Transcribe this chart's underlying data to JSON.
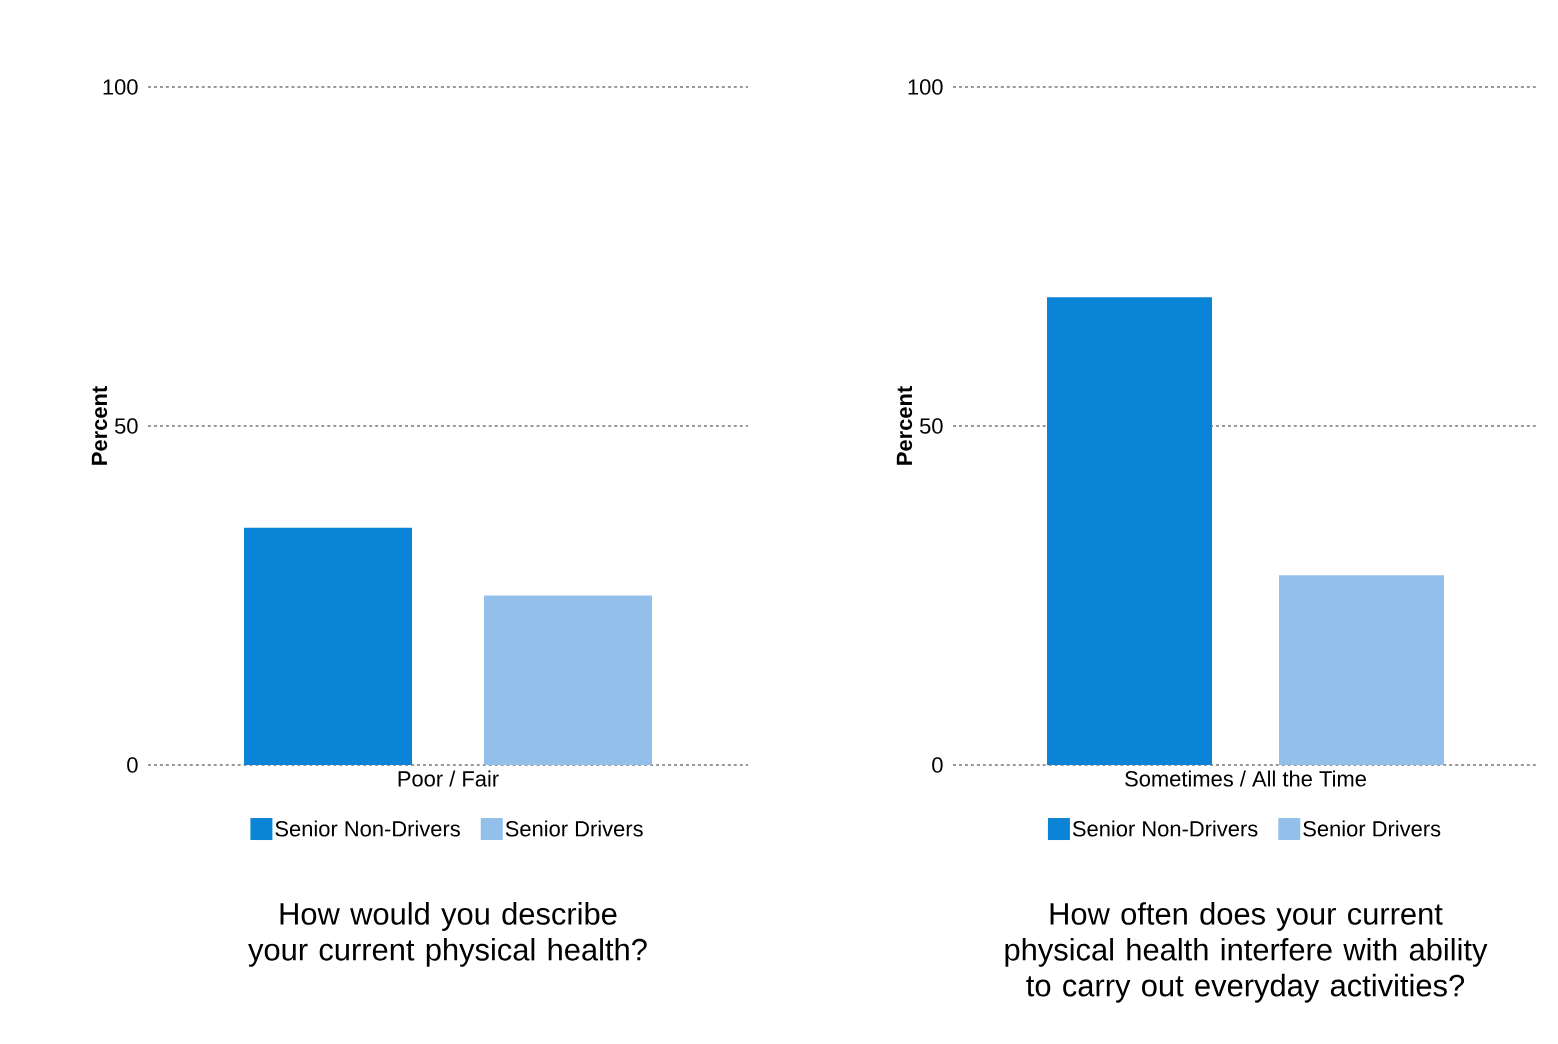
{
  "chart_data": [
    {
      "type": "bar",
      "title": "How would you describe your current physical health?",
      "ylabel": "Percent",
      "categories": [
        "Poor / Fair"
      ],
      "series": [
        {
          "name": "Senior Non-Drivers",
          "color": "#0a84d6",
          "values": [
            35
          ]
        },
        {
          "name": "Senior Drivers",
          "color": "#92c0ea",
          "values": [
            25
          ]
        }
      ],
      "ylim": [
        0,
        100
      ],
      "yticks": [
        0,
        50,
        100
      ],
      "grid": "y",
      "legend": "bottom"
    },
    {
      "type": "bar",
      "title": "How often does your current physical health interfere with ability to carry out everyday activities?",
      "ylabel": "Percent",
      "categories": [
        "Sometimes / All the Time"
      ],
      "series": [
        {
          "name": "Senior Non-Drivers",
          "color": "#0a84d6",
          "values": [
            69
          ]
        },
        {
          "name": "Senior Drivers",
          "color": "#92c0ea",
          "values": [
            28
          ]
        }
      ],
      "ylim": [
        0,
        100
      ],
      "yticks": [
        0,
        50,
        100
      ],
      "grid": "y",
      "legend": "bottom"
    }
  ]
}
